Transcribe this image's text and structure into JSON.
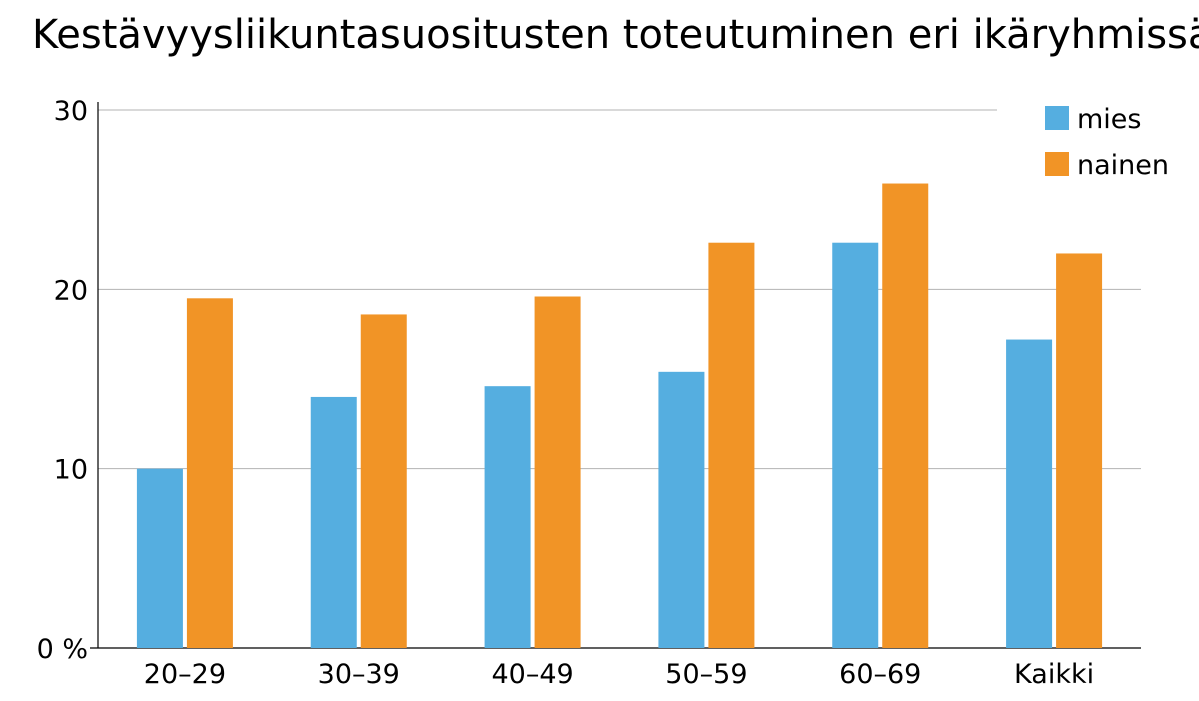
{
  "chart_data": {
    "type": "bar",
    "title": "Kestävyysliikuntasuositusten toteutuminen eri ikäryhmissä",
    "categories": [
      "20–29",
      "30–39",
      "40–49",
      "50–59",
      "60–69",
      "Kaikki"
    ],
    "series": [
      {
        "name": "mies",
        "values": [
          10.0,
          14.0,
          14.6,
          15.4,
          22.6,
          17.2
        ],
        "color": "#55aee0"
      },
      {
        "name": "nainen",
        "values": [
          19.5,
          18.6,
          19.6,
          22.6,
          25.9,
          22.0
        ],
        "color": "#f19426"
      }
    ],
    "yticks": [
      "0 %",
      "10",
      "20",
      "30"
    ],
    "ylim": [
      0,
      30
    ],
    "xlabel": "",
    "ylabel": "",
    "grid": true,
    "legend_position": "top-right"
  }
}
